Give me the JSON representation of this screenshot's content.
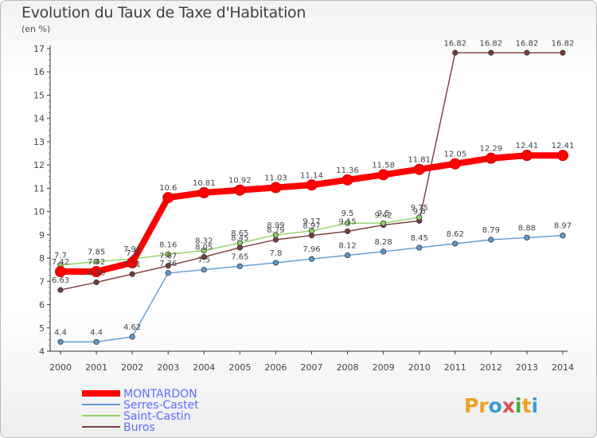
{
  "title": "Evolution du Taux de Taxe d'Habitation",
  "subtitle": "(en %)",
  "brand": {
    "text": "Proxiti",
    "letters": [
      "P",
      "r",
      "o",
      "x",
      "i",
      "t",
      "i"
    ],
    "colors": [
      "#f0a020",
      "#f0a020",
      "#3a9ad9",
      "#e05050",
      "#40b040",
      "#f0a020",
      "#3a9ad9"
    ]
  },
  "chart_data": {
    "type": "line",
    "title": "Evolution du Taux de Taxe d'Habitation",
    "ylabel": "(en %)",
    "xlabel": "",
    "x": [
      2000,
      2001,
      2002,
      2003,
      2004,
      2005,
      2006,
      2007,
      2008,
      2009,
      2010,
      2011,
      2012,
      2013,
      2014
    ],
    "ylim": [
      4,
      17
    ],
    "yticks": [
      4,
      5,
      6,
      7,
      8,
      9,
      10,
      11,
      12,
      13,
      14,
      15,
      16,
      17
    ],
    "grid": false,
    "legend_position": "bottom-left",
    "series": [
      {
        "name": "MONTARDON",
        "color": "#ff0000",
        "values": [
          7.42,
          7.42,
          7.8,
          10.6,
          10.81,
          10.92,
          11.03,
          11.14,
          11.36,
          11.58,
          11.81,
          12.05,
          12.29,
          12.41,
          12.41
        ]
      },
      {
        "name": "Serres-Castet",
        "color": "#5b9bd5",
        "values": [
          4.4,
          4.4,
          4.62,
          7.36,
          7.5,
          7.65,
          7.8,
          7.96,
          8.12,
          8.28,
          8.45,
          8.62,
          8.79,
          8.88,
          8.97
        ]
      },
      {
        "name": "Saint-Castin",
        "color": "#8fd460",
        "values": [
          7.7,
          7.85,
          7.96,
          8.16,
          8.32,
          8.65,
          8.99,
          9.17,
          9.5,
          9.5,
          9.75,
          null,
          null,
          null,
          null
        ]
      },
      {
        "name": "Buros",
        "color": "#7a3b3b",
        "values": [
          6.63,
          6.96,
          7.31,
          7.67,
          8.05,
          8.45,
          8.79,
          8.97,
          9.15,
          9.42,
          9.6,
          16.82,
          16.82,
          16.82,
          16.82
        ]
      }
    ]
  }
}
